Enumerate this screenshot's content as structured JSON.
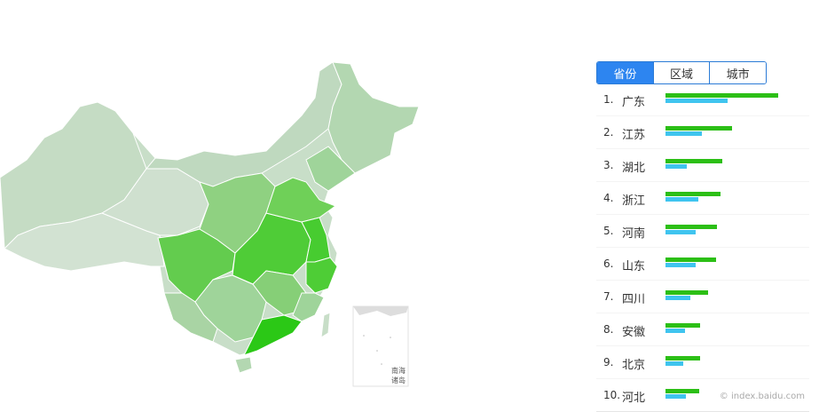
{
  "tabs": [
    {
      "label": "省份",
      "active": true
    },
    {
      "label": "区域",
      "active": false
    },
    {
      "label": "城市",
      "active": false
    }
  ],
  "ranking": [
    {
      "rank": "1.",
      "name": "广东",
      "green": 1.0,
      "blue": 0.55
    },
    {
      "rank": "2.",
      "name": "江苏",
      "green": 0.59,
      "blue": 0.32
    },
    {
      "rank": "3.",
      "name": "湖北",
      "green": 0.5,
      "blue": 0.19
    },
    {
      "rank": "4.",
      "name": "浙江",
      "green": 0.49,
      "blue": 0.29
    },
    {
      "rank": "5.",
      "name": "河南",
      "green": 0.46,
      "blue": 0.27
    },
    {
      "rank": "6.",
      "name": "山东",
      "green": 0.45,
      "blue": 0.27
    },
    {
      "rank": "7.",
      "name": "四川",
      "green": 0.38,
      "blue": 0.22
    },
    {
      "rank": "8.",
      "name": "安徽",
      "green": 0.31,
      "blue": 0.17
    },
    {
      "rank": "9.",
      "name": "北京",
      "green": 0.31,
      "blue": 0.16
    },
    {
      "rank": "10.",
      "name": "河北",
      "green": 0.3,
      "blue": 0.18
    }
  ],
  "colors": {
    "bar_green": "#2cbf16",
    "bar_blue": "#3fc4ef",
    "tab_active": "#2d85f0",
    "map_base": "#c3dcc3",
    "map_mid": "#9fd49a",
    "map_high": "#5fcf45",
    "map_top": "#2bc816"
  },
  "map": {
    "inset_label_line1": "南海",
    "inset_label_line2": "诸岛"
  },
  "watermark": "© index.baidu.com"
}
